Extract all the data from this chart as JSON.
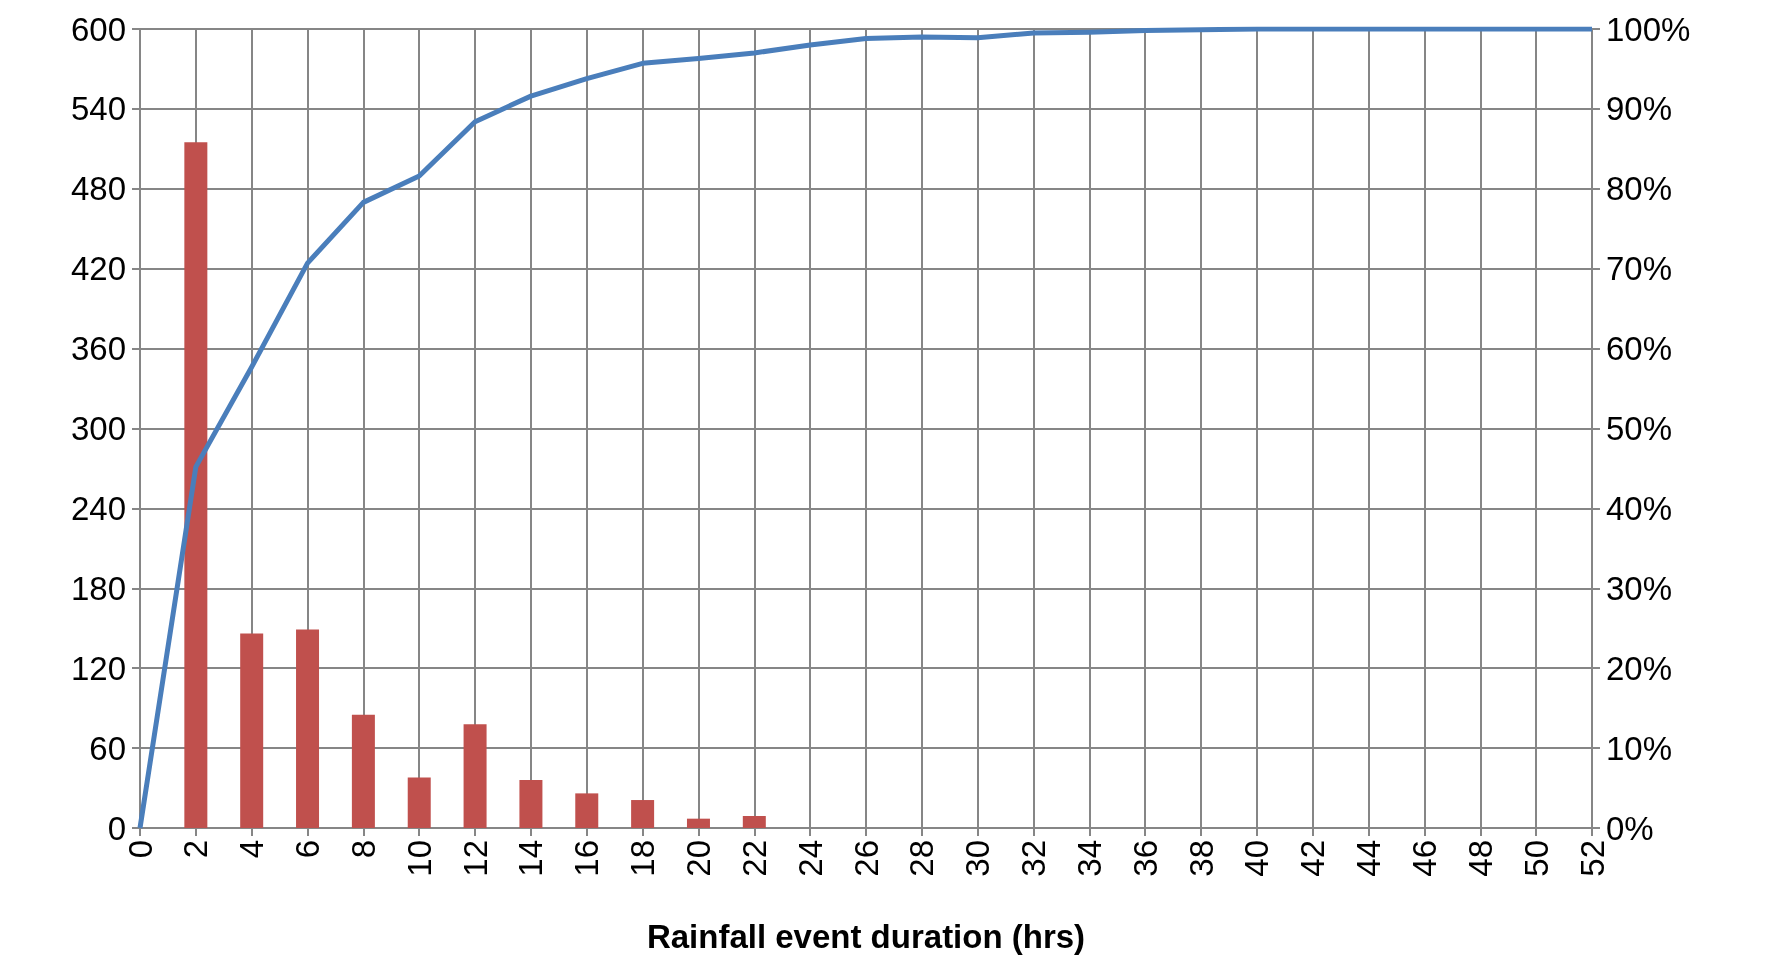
{
  "chart_data": {
    "type": "bar",
    "xlabel": "Rainfall event duration (hrs)",
    "categories": [
      "0",
      "2",
      "4",
      "6",
      "8",
      "10",
      "12",
      "14",
      "16",
      "18",
      "20",
      "22",
      "24",
      "26",
      "28",
      "30",
      "32",
      "34",
      "36",
      "38",
      "40",
      "42",
      "44",
      "46",
      "48",
      "50",
      "52"
    ],
    "series": [
      {
        "color": "#c0504d",
        "values": [
          0,
          515,
          146,
          149,
          85,
          38,
          78,
          36,
          26,
          21,
          7,
          9,
          0,
          0,
          0,
          0,
          0,
          0,
          0,
          0,
          0,
          0,
          0,
          0,
          0,
          0,
          0
        ]
      },
      {
        "type": "line",
        "axis": "y2",
        "color": "#4a7ebb",
        "values": [
          0,
          45.2,
          57.7,
          70.7,
          78.3,
          81.6,
          88.4,
          91.6,
          93.8,
          95.7,
          96.3,
          97.0,
          98.0,
          98.8,
          99.0,
          98.9,
          99.5,
          99.6,
          99.8,
          99.9,
          100,
          100,
          100,
          100,
          100,
          100,
          100
        ]
      }
    ],
    "ylim": [
      0,
      600
    ],
    "yticks": [
      0,
      60,
      120,
      180,
      240,
      300,
      360,
      420,
      480,
      540,
      600
    ],
    "y2lim": [
      0,
      100
    ],
    "y2ticks": [
      {
        "value": 0,
        "label": "0%"
      },
      {
        "value": 10,
        "label": "10%"
      },
      {
        "value": 20,
        "label": "20%"
      },
      {
        "value": 30,
        "label": "30%"
      },
      {
        "value": 40,
        "label": "40%"
      },
      {
        "value": 50,
        "label": "50%"
      },
      {
        "value": 60,
        "label": "60%"
      },
      {
        "value": 70,
        "label": "70%"
      },
      {
        "value": 80,
        "label": "80%"
      },
      {
        "value": 90,
        "label": "90%"
      },
      {
        "value": 100,
        "label": "100%"
      }
    ],
    "grid": true
  }
}
